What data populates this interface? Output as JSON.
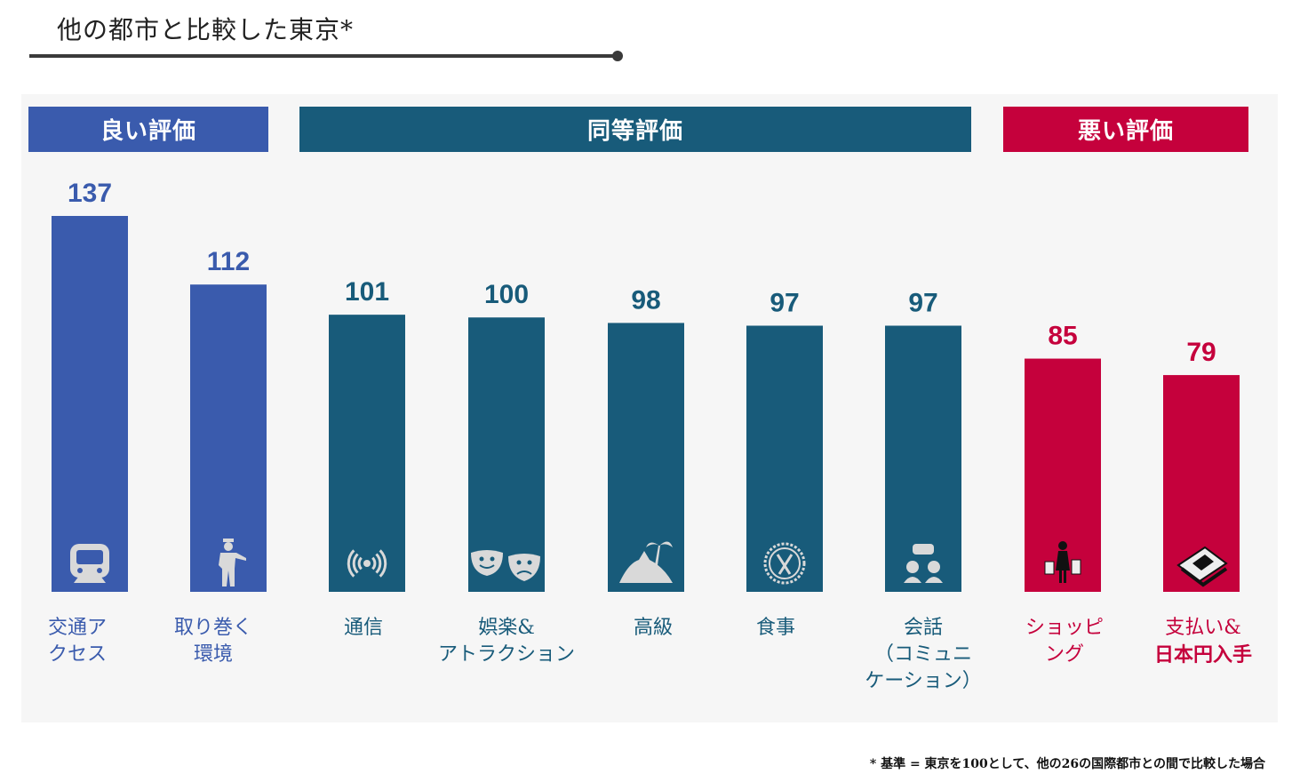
{
  "title": "他の都市と比較した東京*",
  "groups": [
    {
      "label": "良い評価",
      "color": "#3a5bad"
    },
    {
      "label": "同等評価",
      "color": "#185b7a"
    },
    {
      "label": "悪い評価",
      "color": "#c5013c"
    }
  ],
  "footnote": "* 基準 = 東京を100として、他の26の国際都市との間で比較した場合",
  "chart_data": {
    "type": "bar",
    "categories": [
      "交通アクセス",
      "取り巻く環境",
      "通信",
      "娯楽&アトラクション",
      "高級",
      "食事",
      "会話（コミュニケーション）",
      "ショッピング",
      "支払い&日本円入手"
    ],
    "values": [
      137,
      112,
      101,
      100,
      98,
      97,
      97,
      85,
      79
    ],
    "ylim": [
      0,
      137
    ],
    "bar_groups": [
      0,
      0,
      1,
      1,
      1,
      1,
      1,
      2,
      2
    ],
    "label_lines": [
      [
        "交通ア",
        "クセス"
      ],
      [
        "取り巻く",
        "環境"
      ],
      [
        "通信"
      ],
      [
        "娯楽&",
        "アトラクション"
      ],
      [
        "高級"
      ],
      [
        "食事"
      ],
      [
        "会話",
        "（コミュニ",
        "ケーション）"
      ],
      [
        "ショッピ",
        "ング"
      ],
      [
        "支払い&",
        "日本円入手"
      ]
    ],
    "icons": [
      "train-icon",
      "guard-icon",
      "wireless-signal-icon",
      "theater-masks-icon",
      "island-icon",
      "plate-fork-knife-icon",
      "speech-bubbles-icon",
      "shopper-icon",
      "money-icon"
    ]
  }
}
